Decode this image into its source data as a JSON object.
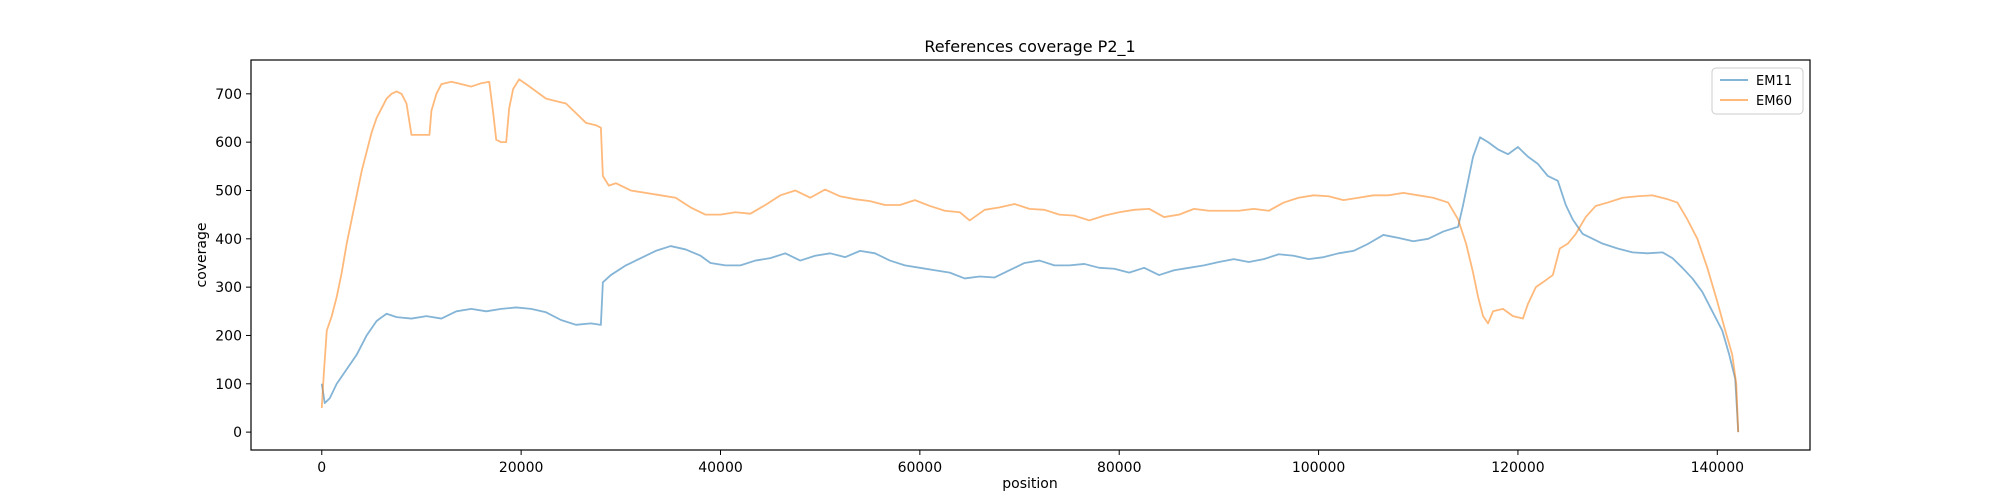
{
  "chart_data": {
    "type": "line",
    "title": "References coverage P2_1",
    "xlabel": "position",
    "ylabel": "coverage",
    "xlim": [
      -7100,
      149300
    ],
    "ylim": [
      -37,
      770
    ],
    "xticks": [
      0,
      20000,
      40000,
      60000,
      80000,
      100000,
      120000,
      140000
    ],
    "yticks": [
      0,
      100,
      200,
      300,
      400,
      500,
      600,
      700
    ],
    "grid": false,
    "legend_position": "top-right",
    "series": [
      {
        "name": "EM11",
        "color": "#1f77b4",
        "points": [
          [
            0,
            100
          ],
          [
            300,
            60
          ],
          [
            800,
            70
          ],
          [
            1500,
            100
          ],
          [
            2500,
            130
          ],
          [
            3500,
            160
          ],
          [
            4500,
            200
          ],
          [
            5500,
            230
          ],
          [
            6500,
            245
          ],
          [
            7500,
            238
          ],
          [
            9000,
            235
          ],
          [
            10500,
            240
          ],
          [
            12000,
            235
          ],
          [
            13500,
            250
          ],
          [
            15000,
            255
          ],
          [
            16500,
            250
          ],
          [
            18000,
            255
          ],
          [
            19500,
            258
          ],
          [
            21000,
            255
          ],
          [
            22500,
            248
          ],
          [
            24000,
            232
          ],
          [
            25500,
            222
          ],
          [
            27000,
            225
          ],
          [
            28000,
            222
          ],
          [
            28200,
            310
          ],
          [
            29000,
            325
          ],
          [
            30500,
            345
          ],
          [
            32000,
            360
          ],
          [
            33500,
            375
          ],
          [
            35000,
            385
          ],
          [
            36500,
            378
          ],
          [
            38000,
            365
          ],
          [
            39000,
            350
          ],
          [
            40500,
            345
          ],
          [
            42000,
            345
          ],
          [
            43500,
            355
          ],
          [
            45000,
            360
          ],
          [
            46500,
            370
          ],
          [
            48000,
            355
          ],
          [
            49500,
            365
          ],
          [
            51000,
            370
          ],
          [
            52500,
            362
          ],
          [
            54000,
            375
          ],
          [
            55500,
            370
          ],
          [
            57000,
            355
          ],
          [
            58500,
            345
          ],
          [
            60000,
            340
          ],
          [
            61500,
            335
          ],
          [
            63000,
            330
          ],
          [
            64500,
            318
          ],
          [
            66000,
            322
          ],
          [
            67500,
            320
          ],
          [
            69000,
            335
          ],
          [
            70500,
            350
          ],
          [
            72000,
            355
          ],
          [
            73500,
            345
          ],
          [
            75000,
            345
          ],
          [
            76500,
            348
          ],
          [
            78000,
            340
          ],
          [
            79500,
            338
          ],
          [
            81000,
            330
          ],
          [
            82500,
            340
          ],
          [
            84000,
            325
          ],
          [
            85500,
            335
          ],
          [
            87000,
            340
          ],
          [
            88500,
            345
          ],
          [
            90000,
            352
          ],
          [
            91500,
            358
          ],
          [
            93000,
            352
          ],
          [
            94500,
            358
          ],
          [
            96000,
            368
          ],
          [
            97500,
            365
          ],
          [
            99000,
            358
          ],
          [
            100500,
            362
          ],
          [
            102000,
            370
          ],
          [
            103500,
            375
          ],
          [
            105000,
            390
          ],
          [
            106500,
            408
          ],
          [
            108000,
            402
          ],
          [
            109500,
            395
          ],
          [
            111000,
            400
          ],
          [
            112500,
            415
          ],
          [
            114000,
            425
          ],
          [
            114500,
            470
          ],
          [
            115000,
            520
          ],
          [
            115500,
            570
          ],
          [
            116200,
            610
          ],
          [
            117000,
            600
          ],
          [
            118000,
            585
          ],
          [
            119000,
            575
          ],
          [
            120000,
            590
          ],
          [
            121000,
            570
          ],
          [
            122000,
            555
          ],
          [
            123000,
            530
          ],
          [
            124000,
            520
          ],
          [
            124800,
            470
          ],
          [
            125500,
            440
          ],
          [
            126500,
            410
          ],
          [
            127500,
            400
          ],
          [
            128500,
            390
          ],
          [
            130000,
            380
          ],
          [
            131500,
            372
          ],
          [
            133000,
            370
          ],
          [
            134500,
            372
          ],
          [
            135500,
            360
          ],
          [
            136500,
            340
          ],
          [
            137500,
            318
          ],
          [
            138500,
            290
          ],
          [
            139500,
            250
          ],
          [
            140500,
            210
          ],
          [
            141200,
            160
          ],
          [
            141800,
            110
          ],
          [
            142100,
            0
          ]
        ]
      },
      {
        "name": "EM60",
        "color": "#ff7f0e",
        "points": [
          [
            0,
            50
          ],
          [
            200,
            120
          ],
          [
            500,
            210
          ],
          [
            1000,
            240
          ],
          [
            1500,
            280
          ],
          [
            2000,
            330
          ],
          [
            2500,
            390
          ],
          [
            3000,
            440
          ],
          [
            3500,
            490
          ],
          [
            4000,
            540
          ],
          [
            4500,
            580
          ],
          [
            5000,
            620
          ],
          [
            5500,
            650
          ],
          [
            6000,
            670
          ],
          [
            6500,
            690
          ],
          [
            7000,
            700
          ],
          [
            7500,
            705
          ],
          [
            8000,
            700
          ],
          [
            8500,
            680
          ],
          [
            9000,
            615
          ],
          [
            10000,
            615
          ],
          [
            10800,
            615
          ],
          [
            11000,
            665
          ],
          [
            11500,
            700
          ],
          [
            12000,
            720
          ],
          [
            13000,
            725
          ],
          [
            14000,
            720
          ],
          [
            15000,
            715
          ],
          [
            16000,
            722
          ],
          [
            16800,
            725
          ],
          [
            17200,
            660
          ],
          [
            17500,
            605
          ],
          [
            18000,
            600
          ],
          [
            18500,
            600
          ],
          [
            18800,
            670
          ],
          [
            19200,
            710
          ],
          [
            19800,
            730
          ],
          [
            20500,
            720
          ],
          [
            21500,
            705
          ],
          [
            22500,
            690
          ],
          [
            23500,
            685
          ],
          [
            24500,
            680
          ],
          [
            25500,
            660
          ],
          [
            26500,
            640
          ],
          [
            27500,
            635
          ],
          [
            28000,
            630
          ],
          [
            28200,
            530
          ],
          [
            28800,
            510
          ],
          [
            29500,
            515
          ],
          [
            31000,
            500
          ],
          [
            32500,
            495
          ],
          [
            34000,
            490
          ],
          [
            35500,
            485
          ],
          [
            37000,
            465
          ],
          [
            38500,
            450
          ],
          [
            40000,
            450
          ],
          [
            41500,
            455
          ],
          [
            43000,
            452
          ],
          [
            44500,
            470
          ],
          [
            46000,
            490
          ],
          [
            47500,
            500
          ],
          [
            49000,
            485
          ],
          [
            50500,
            502
          ],
          [
            52000,
            488
          ],
          [
            53500,
            482
          ],
          [
            55000,
            478
          ],
          [
            56500,
            470
          ],
          [
            58000,
            470
          ],
          [
            59500,
            480
          ],
          [
            61000,
            468
          ],
          [
            62500,
            458
          ],
          [
            64000,
            455
          ],
          [
            65000,
            438
          ],
          [
            66500,
            460
          ],
          [
            68000,
            465
          ],
          [
            69500,
            472
          ],
          [
            71000,
            462
          ],
          [
            72500,
            460
          ],
          [
            74000,
            450
          ],
          [
            75500,
            448
          ],
          [
            77000,
            438
          ],
          [
            78500,
            448
          ],
          [
            80000,
            455
          ],
          [
            81500,
            460
          ],
          [
            83000,
            462
          ],
          [
            84500,
            445
          ],
          [
            86000,
            450
          ],
          [
            87500,
            462
          ],
          [
            89000,
            458
          ],
          [
            90500,
            458
          ],
          [
            92000,
            458
          ],
          [
            93500,
            462
          ],
          [
            95000,
            458
          ],
          [
            96500,
            475
          ],
          [
            98000,
            485
          ],
          [
            99500,
            490
          ],
          [
            101000,
            488
          ],
          [
            102500,
            480
          ],
          [
            104000,
            485
          ],
          [
            105500,
            490
          ],
          [
            107000,
            490
          ],
          [
            108500,
            495
          ],
          [
            110000,
            490
          ],
          [
            111500,
            485
          ],
          [
            113000,
            475
          ],
          [
            114000,
            440
          ],
          [
            114800,
            390
          ],
          [
            115500,
            330
          ],
          [
            116000,
            280
          ],
          [
            116500,
            240
          ],
          [
            117000,
            225
          ],
          [
            117500,
            250
          ],
          [
            118500,
            255
          ],
          [
            119500,
            240
          ],
          [
            120500,
            235
          ],
          [
            121000,
            265
          ],
          [
            121800,
            300
          ],
          [
            122500,
            310
          ],
          [
            123500,
            325
          ],
          [
            124200,
            380
          ],
          [
            125000,
            390
          ],
          [
            125800,
            410
          ],
          [
            126800,
            445
          ],
          [
            127800,
            468
          ],
          [
            129000,
            475
          ],
          [
            130500,
            485
          ],
          [
            132000,
            488
          ],
          [
            133500,
            490
          ],
          [
            135000,
            482
          ],
          [
            136000,
            475
          ],
          [
            137000,
            440
          ],
          [
            138000,
            400
          ],
          [
            139000,
            340
          ],
          [
            140000,
            270
          ],
          [
            140800,
            210
          ],
          [
            141500,
            160
          ],
          [
            141900,
            100
          ],
          [
            142100,
            0
          ]
        ]
      }
    ]
  }
}
